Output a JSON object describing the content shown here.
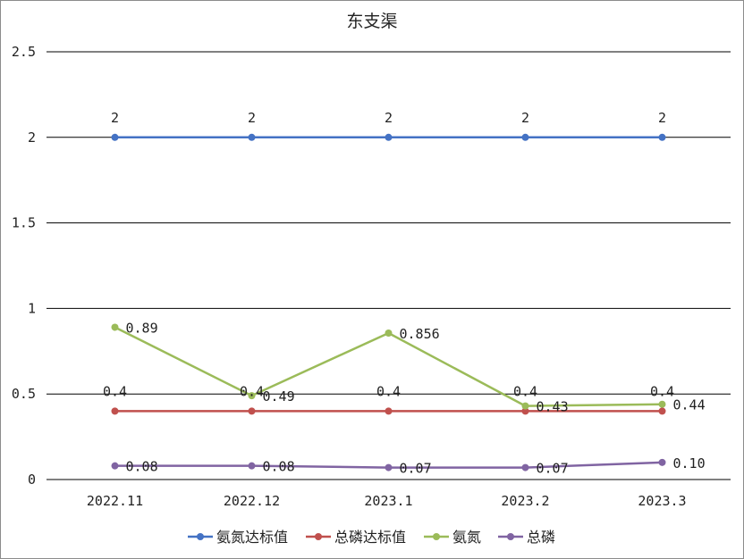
{
  "chart_data": {
    "type": "line",
    "title": "东支渠",
    "xlabel": "",
    "ylabel": "",
    "categories": [
      "2022.11",
      "2022.12",
      "2023.1",
      "2023.2",
      "2023.3"
    ],
    "ylim": [
      0,
      2.5
    ],
    "yticks": [
      0,
      0.5,
      1,
      1.5,
      2,
      2.5
    ],
    "ytick_labels": [
      "0",
      "0.5",
      "1",
      "1.5",
      "2",
      "2.5"
    ],
    "grid": true,
    "legend_position": "bottom",
    "series": [
      {
        "name": "氨氮达标值",
        "color": "#4472C4",
        "values": [
          2,
          2,
          2,
          2,
          2
        ],
        "labels": [
          "2",
          "2",
          "2",
          "2",
          "2"
        ]
      },
      {
        "name": "总磷达标值",
        "color": "#C0504D",
        "values": [
          0.4,
          0.4,
          0.4,
          0.4,
          0.4
        ],
        "labels": [
          "0.4",
          "0.4",
          "0.4",
          "0.4",
          "0.4"
        ]
      },
      {
        "name": "氨氮",
        "color": "#9BBB59",
        "values": [
          0.89,
          0.49,
          0.856,
          0.43,
          0.44
        ],
        "labels": [
          "0.89",
          "0.49",
          "0.856",
          "0.43",
          "0.44"
        ]
      },
      {
        "name": "总磷",
        "color": "#8064A2",
        "values": [
          0.08,
          0.08,
          0.07,
          0.07,
          0.1
        ],
        "labels": [
          "0.08",
          "0.08",
          "0.07",
          "0.07",
          "0.10"
        ]
      }
    ]
  }
}
